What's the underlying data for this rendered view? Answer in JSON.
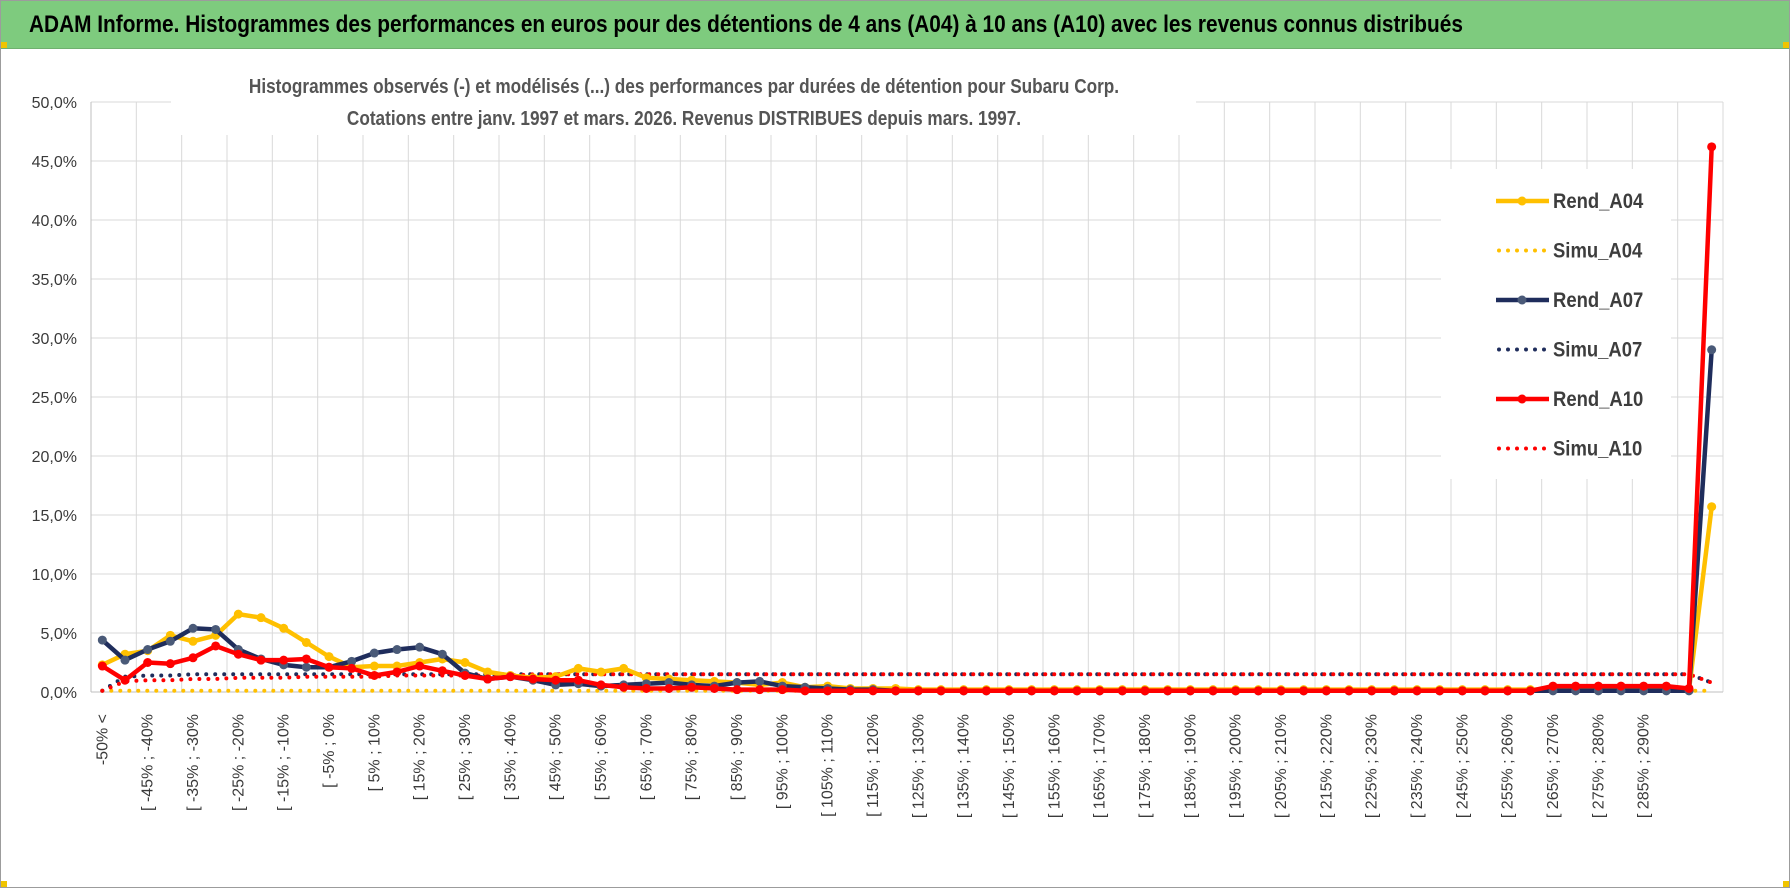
{
  "header": {
    "title": "ADAM Informe. Histogrammes des performances en euros pour des détentions de 4 ans (A04) à 10 ans (A10) avec les revenus connus distribués"
  },
  "chart_data": {
    "type": "line",
    "title_line1": "Histogrammes observés (-) et modélisés (...) des performances par durées de détention pour Subaru Corp.",
    "title_line2": "Cotations entre janv. 1997 et mars. 2026.  Revenus DISTRIBUES depuis mars. 1997.",
    "ylim": [
      0,
      50
    ],
    "yticks": [
      "0,0%",
      "5,0%",
      "10,0%",
      "15,0%",
      "20,0%",
      "25,0%",
      "30,0%",
      "35,0%",
      "40,0%",
      "45,0%",
      "50,0%"
    ],
    "grid": true,
    "legend_position": "right",
    "category_labels": [
      "-50% <",
      "[ -45% ; -40%",
      "[ -35% ; -30%",
      "[ -25% ; -20%",
      "[ -15% ; -10%",
      "[ -5% ; 0%",
      "[ 5% ; 10%",
      "[ 15% ; 20%",
      "[ 25% ; 30%",
      "[ 35% ; 40%",
      "[ 45% ; 50%",
      "[ 55% ; 60%",
      "[ 65% ; 70%",
      "[ 75% ; 80%",
      "[ 85% ; 90%",
      "[ 95% ; 100%",
      "[ 105% ; 110%",
      "[ 115% ; 120%",
      "[ 125% ; 130%",
      "[ 135% ; 140%",
      "[ 145% ; 150%",
      "[ 155% ; 160%",
      "[ 165% ; 170%",
      "[ 175% ; 180%",
      "[ 185% ; 190%",
      "[ 195% ; 200%",
      "[ 205% ; 210%",
      "[ 215% ; 220%",
      "[ 225% ; 230%",
      "[ 235% ; 240%",
      "[ 245% ; 250%",
      "[ 255% ; 260%",
      "[ 265% ; 270%",
      "[ 275% ; 280%",
      "[ 285% ; 290%"
    ],
    "series": [
      {
        "name": "Rend_A04",
        "style": "solid",
        "color": "#ffc000",
        "values": [
          2.3,
          3.2,
          3.5,
          4.8,
          4.3,
          4.8,
          6.6,
          6.3,
          5.4,
          4.2,
          3.0,
          2.1,
          2.2,
          2.2,
          2.5,
          2.8,
          2.5,
          1.7,
          1.4,
          1.2,
          1.3,
          2.0,
          1.7,
          2.0,
          1.2,
          1.1,
          1.0,
          0.9,
          0.8,
          0.6,
          0.8,
          0.4,
          0.5,
          0.3,
          0.3,
          0.3,
          0.2,
          0.2,
          0.2,
          0.2,
          0.2,
          0.2,
          0.2,
          0.2,
          0.2,
          0.2,
          0.2,
          0.2,
          0.2,
          0.2,
          0.2,
          0.2,
          0.2,
          0.2,
          0.2,
          0.2,
          0.2,
          0.2,
          0.2,
          0.2,
          0.2,
          0.2,
          0.2,
          0.2,
          0.2,
          0.2,
          0.2,
          0.2,
          0.2,
          0.2,
          0.2,
          15.7
        ]
      },
      {
        "name": "Simu_A04",
        "style": "dotted",
        "color": "#ffc000",
        "values": [
          0.1,
          0.1,
          0.1,
          0.1,
          0.1,
          0.1,
          0.1,
          0.1,
          0.1,
          0.1,
          0.1,
          0.1,
          0.1,
          0.1,
          0.1,
          0.1,
          0.1,
          0.1,
          0.1,
          0.1,
          0.1,
          0.1,
          0.1,
          0.1,
          0.1,
          0.1,
          0.1,
          0.1,
          0.1,
          0.1,
          0.1,
          0.1,
          0.1,
          0.1,
          0.1,
          0.1,
          0.1,
          0.1,
          0.1,
          0.1,
          0.1,
          0.1,
          0.1,
          0.1,
          0.1,
          0.1,
          0.1,
          0.1,
          0.1,
          0.1,
          0.1,
          0.1,
          0.1,
          0.1,
          0.1,
          0.1,
          0.1,
          0.1,
          0.1,
          0.1,
          0.1,
          0.1,
          0.1,
          0.1,
          0.1,
          0.1,
          0.1,
          0.1,
          0.1,
          0.1,
          0.1,
          0.1
        ]
      },
      {
        "name": "Rend_A07",
        "style": "solid",
        "color": "#1f2d5c",
        "values": [
          4.4,
          2.7,
          3.6,
          4.3,
          5.4,
          5.3,
          3.6,
          2.8,
          2.3,
          2.1,
          2.1,
          2.6,
          3.3,
          3.6,
          3.8,
          3.2,
          1.6,
          1.1,
          1.3,
          1.0,
          0.6,
          0.7,
          0.5,
          0.6,
          0.7,
          0.8,
          0.6,
          0.5,
          0.8,
          0.9,
          0.5,
          0.4,
          0.3,
          0.2,
          0.2,
          0.1,
          0.1,
          0.1,
          0.1,
          0.1,
          0.1,
          0.1,
          0.1,
          0.1,
          0.1,
          0.1,
          0.1,
          0.1,
          0.1,
          0.1,
          0.1,
          0.1,
          0.1,
          0.1,
          0.1,
          0.1,
          0.1,
          0.1,
          0.1,
          0.1,
          0.1,
          0.1,
          0.1,
          0.1,
          0.1,
          0.1,
          0.1,
          0.1,
          0.1,
          0.1,
          0.1,
          29.0
        ]
      },
      {
        "name": "Simu_A07",
        "style": "dotted",
        "color": "#1f2d5c",
        "values": [
          0.1,
          1.3,
          1.4,
          1.4,
          1.5,
          1.5,
          1.5,
          1.5,
          1.5,
          1.5,
          1.5,
          1.5,
          1.5,
          1.5,
          1.5,
          1.5,
          1.5,
          1.5,
          1.5,
          1.5,
          1.5,
          1.5,
          1.5,
          1.5,
          1.5,
          1.5,
          1.5,
          1.5,
          1.5,
          1.5,
          1.5,
          1.5,
          1.5,
          1.5,
          1.5,
          1.5,
          1.5,
          1.5,
          1.5,
          1.5,
          1.5,
          1.5,
          1.5,
          1.5,
          1.5,
          1.5,
          1.5,
          1.5,
          1.5,
          1.5,
          1.5,
          1.5,
          1.5,
          1.5,
          1.5,
          1.5,
          1.5,
          1.5,
          1.5,
          1.5,
          1.5,
          1.5,
          1.5,
          1.5,
          1.5,
          1.5,
          1.5,
          1.5,
          1.5,
          1.5,
          1.5,
          0.8
        ]
      },
      {
        "name": "Rend_A10",
        "style": "solid",
        "color": "#ff0000",
        "values": [
          2.2,
          1.0,
          2.5,
          2.4,
          2.9,
          3.9,
          3.2,
          2.7,
          2.7,
          2.8,
          2.1,
          2.0,
          1.4,
          1.7,
          2.2,
          1.8,
          1.4,
          1.1,
          1.3,
          1.1,
          1.0,
          1.0,
          0.6,
          0.4,
          0.3,
          0.3,
          0.4,
          0.3,
          0.2,
          0.2,
          0.2,
          0.1,
          0.1,
          0.1,
          0.1,
          0.1,
          0.1,
          0.1,
          0.1,
          0.1,
          0.1,
          0.1,
          0.1,
          0.1,
          0.1,
          0.1,
          0.1,
          0.1,
          0.1,
          0.1,
          0.1,
          0.1,
          0.1,
          0.1,
          0.1,
          0.1,
          0.1,
          0.1,
          0.1,
          0.1,
          0.1,
          0.1,
          0.1,
          0.1,
          0.5,
          0.5,
          0.5,
          0.5,
          0.5,
          0.5,
          0.3,
          46.2
        ]
      },
      {
        "name": "Simu_A10",
        "style": "dotted",
        "color": "#ff0000",
        "values": [
          0.1,
          0.9,
          1.0,
          1.0,
          1.1,
          1.1,
          1.2,
          1.2,
          1.2,
          1.3,
          1.3,
          1.3,
          1.3,
          1.4,
          1.4,
          1.4,
          1.4,
          1.4,
          1.4,
          1.5,
          1.5,
          1.5,
          1.5,
          1.5,
          1.5,
          1.5,
          1.5,
          1.5,
          1.5,
          1.5,
          1.5,
          1.5,
          1.5,
          1.5,
          1.5,
          1.5,
          1.5,
          1.5,
          1.5,
          1.5,
          1.5,
          1.5,
          1.5,
          1.5,
          1.5,
          1.5,
          1.5,
          1.5,
          1.5,
          1.5,
          1.5,
          1.5,
          1.5,
          1.5,
          1.5,
          1.5,
          1.5,
          1.5,
          1.5,
          1.5,
          1.5,
          1.5,
          1.5,
          1.5,
          1.5,
          1.5,
          1.5,
          1.5,
          1.5,
          1.5,
          1.5,
          0.8
        ]
      }
    ]
  }
}
